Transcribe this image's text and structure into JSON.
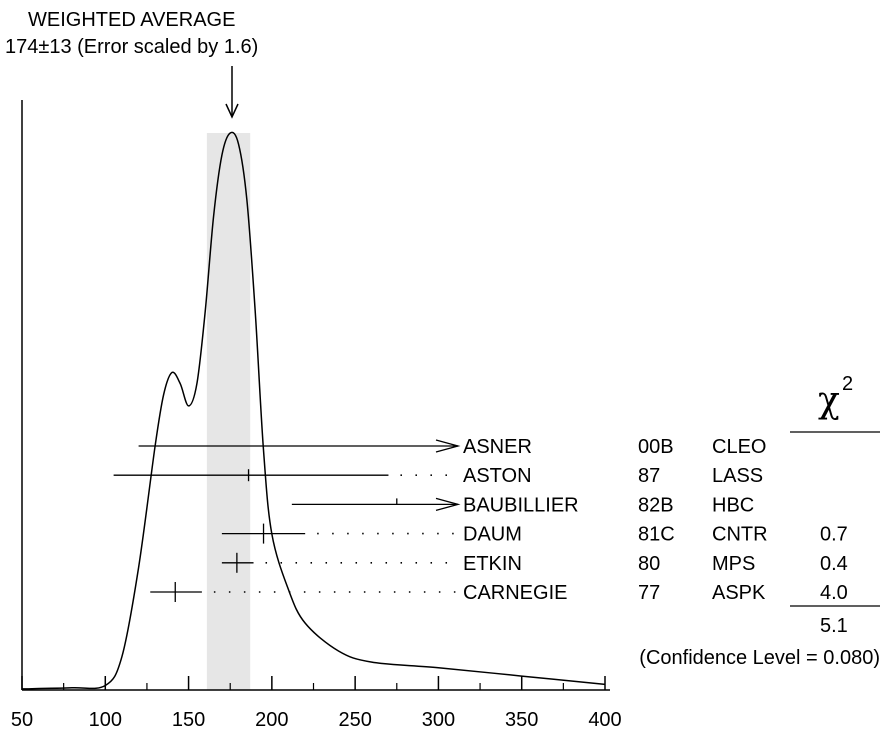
{
  "title": {
    "line1": "WEIGHTED AVERAGE",
    "line2": "174±13 (Error scaled by 1.6)"
  },
  "chi_header": "χ",
  "chi_superscript": "2",
  "chi_total": "5.1",
  "confidence_level": "(Confidence Level = 0.080)",
  "chart_data": {
    "type": "ideogram",
    "title": "WEIGHTED AVERAGE",
    "subtitle": "174±13 (Error scaled by 1.6)",
    "xlim": [
      50,
      400
    ],
    "x_ticks": [
      50,
      100,
      150,
      200,
      250,
      300,
      350,
      400
    ],
    "weighted_average": {
      "value": 174,
      "error": 13,
      "band": [
        161,
        187
      ]
    },
    "measurements": [
      {
        "name": "ASNER",
        "ref": "00B",
        "experiment": "CLEO",
        "value": null,
        "lo": 120,
        "hi": 400,
        "arrow": "right",
        "dotted": false,
        "chi2": ""
      },
      {
        "name": "ASTON",
        "ref": "87",
        "experiment": "LASS",
        "value": 186,
        "lo": 105,
        "hi": 270,
        "arrow": "none",
        "dotted": true,
        "chi2": ""
      },
      {
        "name": "BAUBILLIER",
        "ref": "82B",
        "experiment": "HBC",
        "value": 275,
        "lo": 212,
        "hi": 400,
        "arrow": "right",
        "dotted": false,
        "chi2": ""
      },
      {
        "name": "DAUM",
        "ref": "81C",
        "experiment": "CNTR",
        "value": 195,
        "lo": 170,
        "hi": 220,
        "arrow": "none",
        "dotted": true,
        "chi2": "0.7"
      },
      {
        "name": "ETKIN",
        "ref": "80",
        "experiment": "MPS",
        "value": 179,
        "lo": 170,
        "hi": 189,
        "arrow": "none",
        "dotted": true,
        "chi2": "0.4"
      },
      {
        "name": "CARNEGIE",
        "ref": "77",
        "experiment": "ASPK",
        "value": 142,
        "lo": 127,
        "hi": 158,
        "arrow": "none",
        "dotted": true,
        "chi2": "4.0"
      }
    ],
    "ideogram_curve": [
      [
        50,
        0.002
      ],
      [
        80,
        0.004
      ],
      [
        100,
        0.008
      ],
      [
        110,
        0.06
      ],
      [
        120,
        0.22
      ],
      [
        130,
        0.44
      ],
      [
        135,
        0.53
      ],
      [
        140,
        0.57
      ],
      [
        145,
        0.55
      ],
      [
        150,
        0.51
      ],
      [
        155,
        0.55
      ],
      [
        160,
        0.68
      ],
      [
        165,
        0.85
      ],
      [
        170,
        0.96
      ],
      [
        175,
        1.0
      ],
      [
        180,
        0.98
      ],
      [
        185,
        0.88
      ],
      [
        190,
        0.68
      ],
      [
        195,
        0.43
      ],
      [
        200,
        0.28
      ],
      [
        210,
        0.18
      ],
      [
        220,
        0.12
      ],
      [
        240,
        0.07
      ],
      [
        260,
        0.05
      ],
      [
        300,
        0.04
      ],
      [
        350,
        0.025
      ],
      [
        400,
        0.01
      ]
    ]
  }
}
